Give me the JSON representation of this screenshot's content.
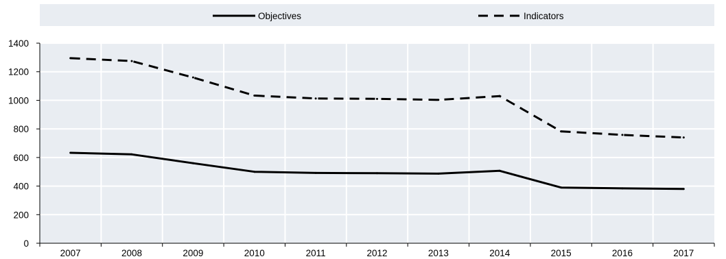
{
  "chart_data": {
    "type": "line",
    "x": [
      "2007",
      "2008",
      "2009",
      "2010",
      "2011",
      "2012",
      "2013",
      "2014",
      "2015",
      "2016",
      "2017"
    ],
    "series": [
      {
        "name": "Objectives",
        "style": "solid",
        "values": [
          633,
          622,
          560,
          500,
          492,
          490,
          487,
          507,
          390,
          384,
          380
        ]
      },
      {
        "name": "Indicators",
        "style": "dashed",
        "values": [
          1295,
          1275,
          1160,
          1033,
          1013,
          1010,
          1003,
          1030,
          783,
          758,
          740
        ]
      }
    ],
    "yticks": [
      "0",
      "200",
      "400",
      "600",
      "800",
      "1000",
      "1200",
      "1400"
    ],
    "ylim": [
      0,
      1400
    ],
    "grid": true,
    "legend_position": "top",
    "title": "",
    "xlabel": "",
    "ylabel": "",
    "colors": {
      "background": "#e9edf2",
      "grid": "#ffffff",
      "line": "#000000",
      "axis": "#000000"
    }
  }
}
